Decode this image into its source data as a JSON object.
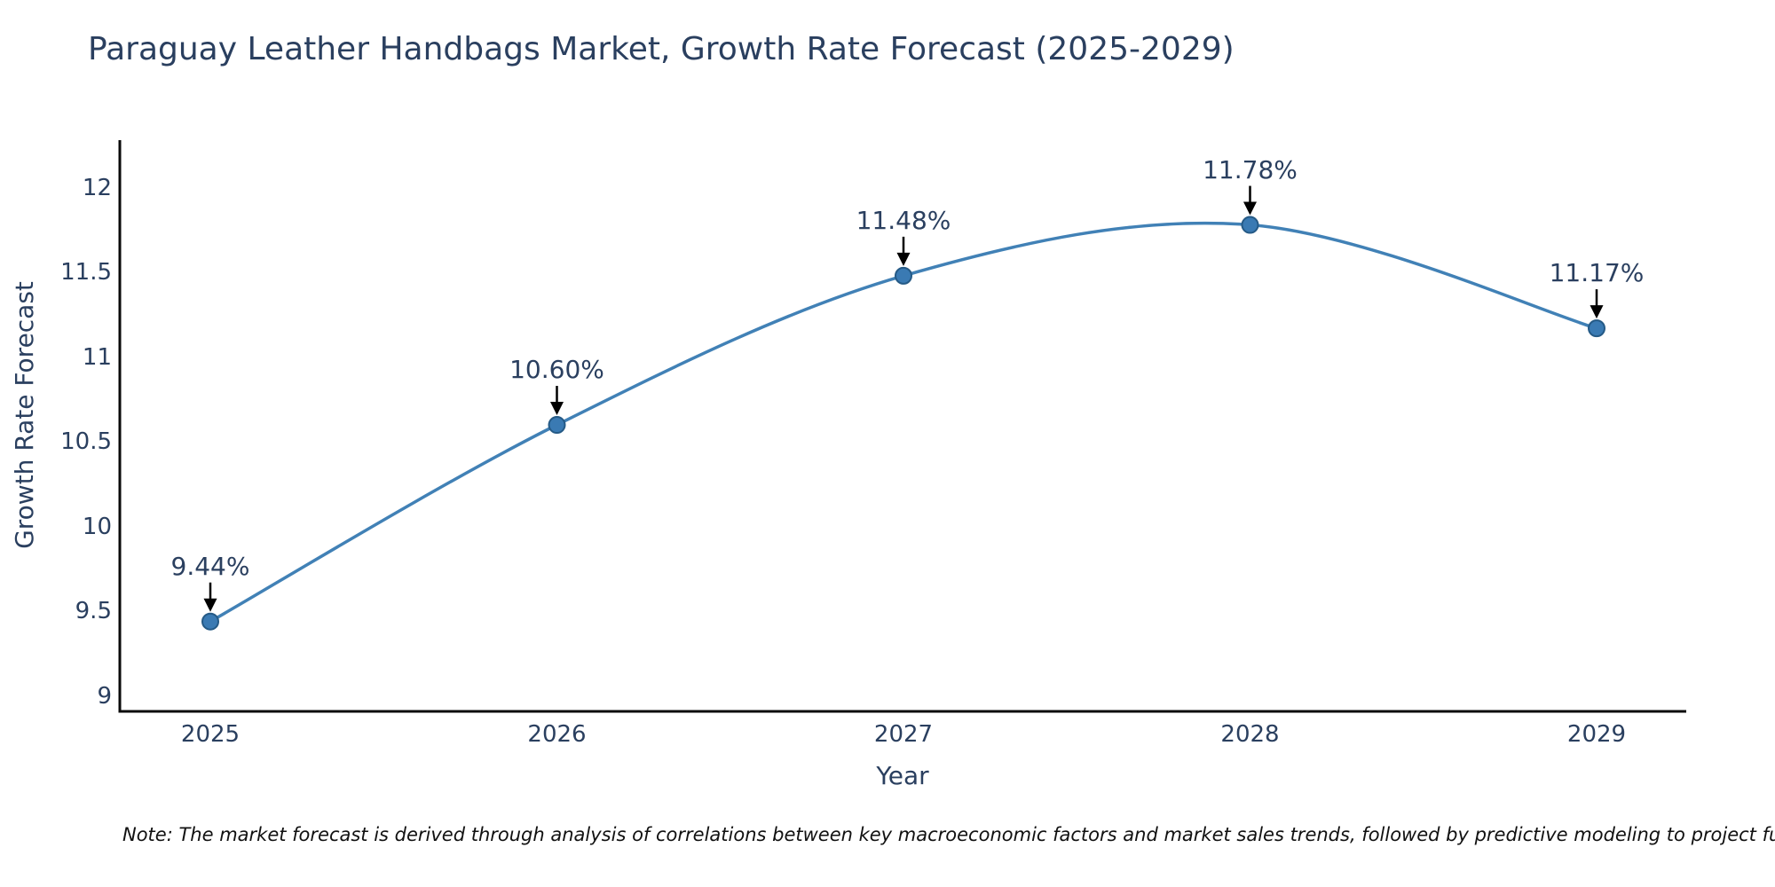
{
  "chart_data": {
    "type": "line",
    "title": "Paraguay Leather Handbags Market, Growth Rate Forecast (2025-2029)",
    "xlabel": "Year",
    "ylabel": "Growth Rate Forecast",
    "x": [
      2025,
      2026,
      2027,
      2028,
      2029
    ],
    "values": [
      9.44,
      10.6,
      11.48,
      11.78,
      11.17
    ],
    "point_labels": [
      "9.44%",
      "10.60%",
      "11.48%",
      "11.78%",
      "11.17%"
    ],
    "yticks": [
      9,
      9.5,
      10,
      10.5,
      11,
      11.5,
      12
    ],
    "ytick_labels": [
      "9",
      "9.5",
      "10",
      "10.5",
      "11",
      "11.5",
      "12"
    ],
    "ylim": [
      8.91,
      12.28
    ],
    "grid": false,
    "legend": "none",
    "line_color": "#4181b6",
    "marker_color": "#3a7ab3",
    "marker_edge_color": "#255a86",
    "spine_color": "#0a0a0a",
    "arrow_color": "#000000",
    "text_color": "#2a3f5f"
  },
  "note": {
    "text": "Note: The market forecast is derived through analysis of correlations between key macroeconomic factors and market sales trends, followed by predictive modeling to project future sales."
  }
}
